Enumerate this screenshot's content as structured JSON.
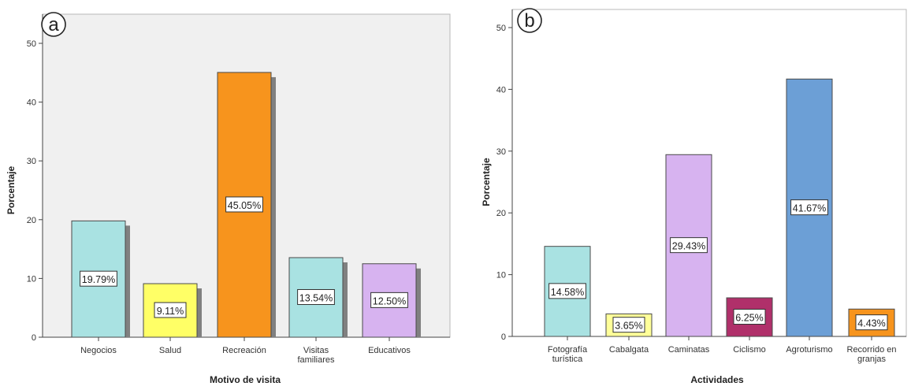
{
  "chart_data": [
    {
      "type": "bar",
      "panel_label": "a",
      "categories": [
        "Negocios",
        "Salud",
        "Recreación",
        "Visitas familiares",
        "Educativos"
      ],
      "category_lines": [
        [
          "Negocios"
        ],
        [
          "Salud"
        ],
        [
          "Recreación"
        ],
        [
          "Visitas",
          "familiares"
        ],
        [
          "Educativos"
        ]
      ],
      "values": [
        19.79,
        9.11,
        45.05,
        13.54,
        12.5
      ],
      "data_labels": [
        "19.79%",
        "9.11%",
        "45.05%",
        "13.54%",
        "12.50%"
      ],
      "colors": [
        "#a9e2e2",
        "#ffff66",
        "#f7941d",
        "#a9e2e2",
        "#d7b3f0"
      ],
      "xlabel": "Motivo de visita",
      "ylabel": "Porcentaje",
      "ylim": [
        0,
        50
      ],
      "yticks": [
        0,
        10,
        20,
        30,
        40,
        50
      ],
      "grid": false,
      "background": "#f0f0f0"
    },
    {
      "type": "bar",
      "panel_label": "b",
      "categories": [
        "Fotografía turística",
        "Cabalgata",
        "Caminatas",
        "Ciclismo",
        "Agroturismo",
        "Recorrido en granjas"
      ],
      "category_lines": [
        [
          "Fotografía",
          "turística"
        ],
        [
          "Cabalgata"
        ],
        [
          "Caminatas"
        ],
        [
          "Ciclismo"
        ],
        [
          "Agroturismo"
        ],
        [
          "Recorrido en",
          "granjas"
        ]
      ],
      "values": [
        14.58,
        3.65,
        29.43,
        6.25,
        41.67,
        4.43
      ],
      "data_labels": [
        "14.58%",
        "3.65%",
        "29.43%",
        "6.25%",
        "41.67%",
        "4.43%"
      ],
      "colors": [
        "#a9e2e2",
        "#ffff99",
        "#d7b3f0",
        "#b0306a",
        "#6c9fd6",
        "#f7941d"
      ],
      "xlabel": "Actividades",
      "ylabel": "Porcentaje",
      "ylim": [
        0,
        50
      ],
      "yticks": [
        0,
        10,
        20,
        30,
        40,
        50
      ],
      "grid": false,
      "background": "#ffffff"
    }
  ]
}
